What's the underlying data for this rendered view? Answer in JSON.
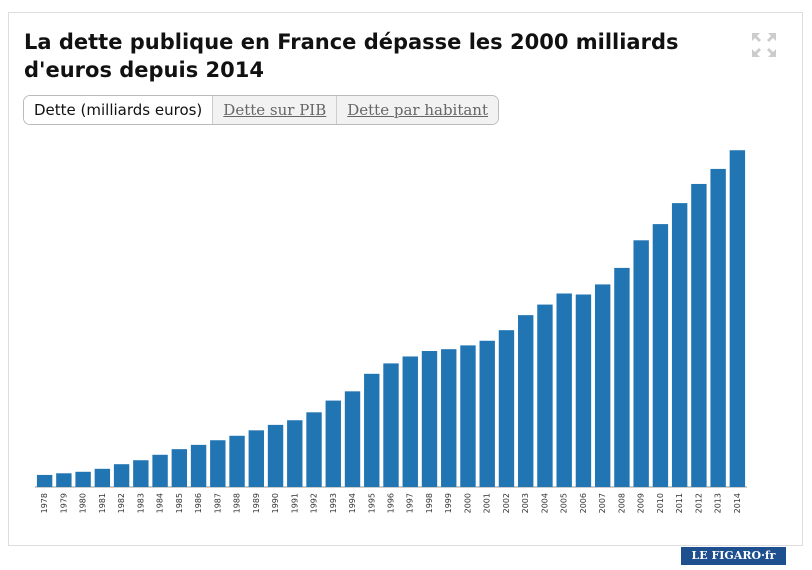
{
  "chart_data": {
    "type": "bar",
    "title": "La dette publique en France dépasse les 2000 milliards d'euros depuis 2014",
    "categories": [
      "1978",
      "1979",
      "1980",
      "1981",
      "1982",
      "1983",
      "1984",
      "1985",
      "1986",
      "1987",
      "1988",
      "1989",
      "1990",
      "1991",
      "1992",
      "1993",
      "1994",
      "1995",
      "1996",
      "1997",
      "1998",
      "1999",
      "2000",
      "2001",
      "2002",
      "2003",
      "2004",
      "2005",
      "2006",
      "2007",
      "2008",
      "2009",
      "2010",
      "2011",
      "2012",
      "2013",
      "2014"
    ],
    "values": [
      73,
      83,
      92,
      110,
      138,
      162,
      195,
      229,
      255,
      283,
      310,
      343,
      376,
      404,
      452,
      523,
      579,
      685,
      748,
      790,
      823,
      834,
      857,
      885,
      949,
      1040,
      1104,
      1171,
      1165,
      1226,
      1326,
      1493,
      1591,
      1718,
      1834,
      1925,
      2038
    ],
    "color": "#2175b3",
    "ylim": [
      0,
      2100
    ]
  },
  "tabs": [
    "Dette (milliards euros)",
    "Dette sur PIB",
    "Dette par habitant"
  ],
  "logo": "LE FIGARO·fr"
}
